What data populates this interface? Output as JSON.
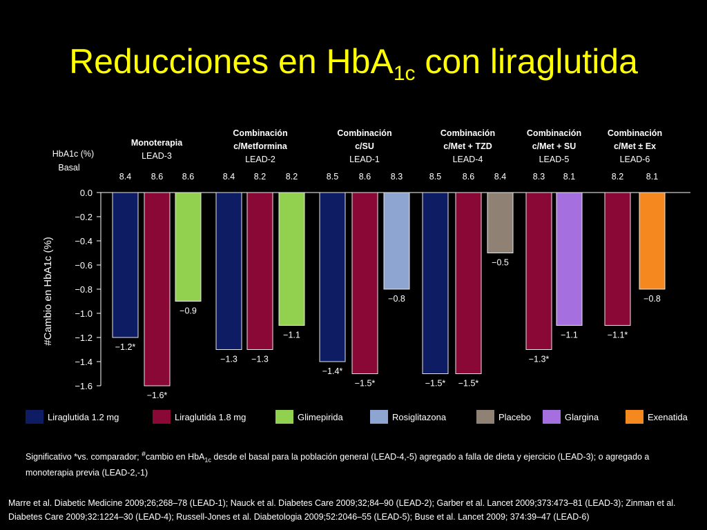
{
  "title": {
    "pre": "Reducciones en HbA",
    "sub": "1c",
    "post": " con liraglutida"
  },
  "colors": {
    "title": "#ffff00",
    "liraglutida_1_2": "#0e1c63",
    "liraglutida_1_8": "#8a0836",
    "glimepirida": "#92d050",
    "rosiglitazona": "#8ea5d2",
    "placebo": "#8f8173",
    "glargina": "#a66fe0",
    "exenatida": "#f5881f"
  },
  "chart_data": {
    "type": "bar",
    "ylabel": "#Cambio en HbA1c (%)",
    "baseline_header": "HbA1c (%) Basal",
    "ylim": [
      -1.6,
      0
    ],
    "yticks": [
      "0.0",
      "−0.2",
      "−0.4",
      "−0.6",
      "−0.8",
      "−1.0",
      "−1.2",
      "−1.4",
      "−1.6"
    ],
    "groups": [
      {
        "line1": "Monoterapia",
        "line2": "LEAD-3",
        "bars": [
          {
            "series": "Liraglutida 1.2 mg",
            "value": -1.2,
            "label": "−1.2*",
            "baseline": "8.4"
          },
          {
            "series": "Liraglutida 1.8 mg",
            "value": -1.6,
            "label": "−1.6*",
            "baseline": "8.6"
          },
          {
            "series": "Glimepirida",
            "value": -0.9,
            "label": "−0.9",
            "baseline": "8.6"
          }
        ]
      },
      {
        "line1": "Combinación",
        "line2": "c/Metformina",
        "line3": "LEAD-2",
        "bars": [
          {
            "series": "Liraglutida 1.2 mg",
            "value": -1.3,
            "label": "−1.3",
            "baseline": "8.4"
          },
          {
            "series": "Liraglutida 1.8 mg",
            "value": -1.3,
            "label": "−1.3",
            "baseline": "8.2"
          },
          {
            "series": "Glimepirida",
            "value": -1.1,
            "label": "−1.1",
            "baseline": "8.2"
          }
        ]
      },
      {
        "line1": "Combinación",
        "line2": "c/SU",
        "line3": "LEAD-1",
        "bars": [
          {
            "series": "Liraglutida 1.2 mg",
            "value": -1.4,
            "label": "−1.4*",
            "baseline": "8.5"
          },
          {
            "series": "Liraglutida 1.8 mg",
            "value": -1.5,
            "label": "−1.5*",
            "baseline": "8.6"
          },
          {
            "series": "Rosiglitazona",
            "value": -0.8,
            "label": "−0.8",
            "baseline": "8.3"
          }
        ]
      },
      {
        "line1": "Combinación",
        "line2": "c/Met + TZD",
        "line3": "LEAD-4",
        "bars": [
          {
            "series": "Liraglutida 1.2 mg",
            "value": -1.5,
            "label": "−1.5*",
            "baseline": "8.5"
          },
          {
            "series": "Liraglutida 1.8 mg",
            "value": -1.5,
            "label": "−1.5*",
            "baseline": "8.6"
          },
          {
            "series": "Placebo",
            "value": -0.5,
            "label": "−0.5",
            "baseline": "8.4"
          }
        ]
      },
      {
        "line1": "Combinación",
        "line2": "c/Met + SU",
        "line3": "LEAD-5",
        "bars": [
          {
            "series": "Liraglutida 1.8 mg",
            "value": -1.3,
            "label": "−1.3*",
            "baseline": "8.3"
          },
          {
            "series": "Glargina",
            "value": -1.1,
            "label": "−1.1",
            "baseline": "8.1"
          }
        ]
      },
      {
        "line1": "Combinación",
        "line2": "c/Met ± Ex",
        "line3": "LEAD-6",
        "bars": [
          {
            "series": "Liraglutida 1.8 mg",
            "value": -1.1,
            "label": "−1.1*",
            "baseline": "8.2"
          },
          {
            "series": "Exenatida",
            "value": -0.8,
            "label": "−0.8",
            "baseline": "8.1"
          }
        ]
      }
    ],
    "legend": [
      {
        "name": "Liraglutida 1.2 mg",
        "color": "#0e1c63"
      },
      {
        "name": "Liraglutida 1.8 mg",
        "color": "#8a0836"
      },
      {
        "name": "Glimepirida",
        "color": "#92d050"
      },
      {
        "name": "Rosiglitazona",
        "color": "#8ea5d2"
      },
      {
        "name": "Placebo",
        "color": "#8f8173"
      },
      {
        "name": "Glargina",
        "color": "#a66fe0"
      },
      {
        "name": "Exenatida",
        "color": "#f5881f"
      }
    ]
  },
  "footnote": {
    "part1": "Significativo *vs. comparador; ",
    "sup": "#",
    "part2": "cambio en HbA",
    "sub": "1c",
    "part3": " desde el basal para la población general (LEAD-4,-5) agregado a falla de dieta y ejercicio (LEAD-3); o agregado a monoterapia previa (LEAD-2,-1)"
  },
  "references": "Marre et al. Diabetic Medicine 2009;26;268–78 (LEAD-1); Nauck et al. Diabetes Care 2009;32;84–90 (LEAD-2); Garber et al. Lancet 2009;373:473–81 (LEAD-3); Zinman et al. Diabetes Care 2009;32:1224–30 (LEAD-4); Russell-Jones et al. Diabetologia 2009;52:2046–55 (LEAD-5); Buse et al. Lancet 2009; 374:39–47 (LEAD-6)"
}
